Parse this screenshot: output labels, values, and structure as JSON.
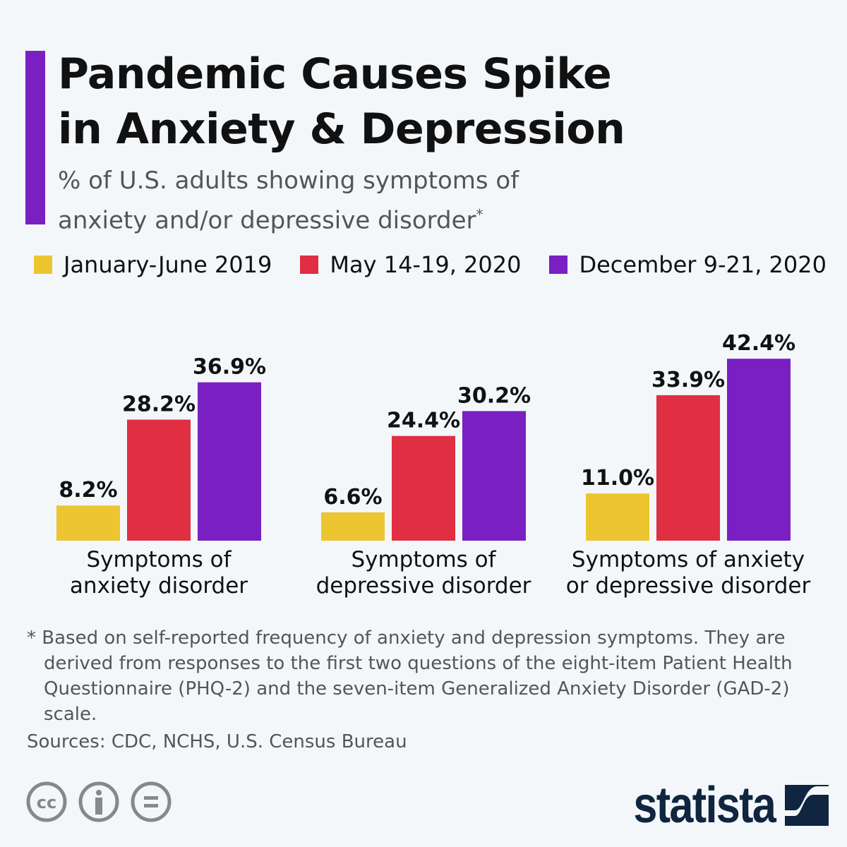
{
  "header": {
    "title_line1": "Pandemic Causes Spike",
    "title_line2": "in Anxiety & Depression",
    "subtitle_line1": "% of U.S. adults showing symptoms of",
    "subtitle_line2": "anxiety and/or depressive disorder",
    "subtitle_mark": "*"
  },
  "chart_data": {
    "type": "bar",
    "categories": [
      [
        "Symptoms of",
        "anxiety disorder"
      ],
      [
        "Symptoms of",
        "depressive disorder"
      ],
      [
        "Symptoms of anxiety",
        "or depressive disorder"
      ]
    ],
    "series": [
      {
        "name": "January-June 2019",
        "color": "#ecc530",
        "values": [
          8.2,
          6.6,
          11.0
        ]
      },
      {
        "name": "May 14-19, 2020",
        "color": "#e02e43",
        "values": [
          28.2,
          24.4,
          33.9
        ]
      },
      {
        "name": "December 9-21, 2020",
        "color": "#7a1fc2",
        "values": [
          36.9,
          30.2,
          42.4
        ]
      }
    ],
    "unit": "%",
    "legend": "top",
    "grid": false
  },
  "footer": {
    "note": "* Based on self-reported frequency of anxiety and depression symptoms. They are derived from responses to the first two questions of the eight-item Patient Health Questionnaire (PHQ-2) and the seven-item Generalized Anxiety Disorder (GAD-2) scale.",
    "sources": "Sources: CDC, NCHS, U.S. Census Bureau",
    "license_icons": [
      "cc-icon",
      "attribution-icon",
      "no-derivatives-icon"
    ],
    "logo": "statista",
    "brand_color": "#0f2540",
    "accent_color": "#7a1fc2"
  }
}
